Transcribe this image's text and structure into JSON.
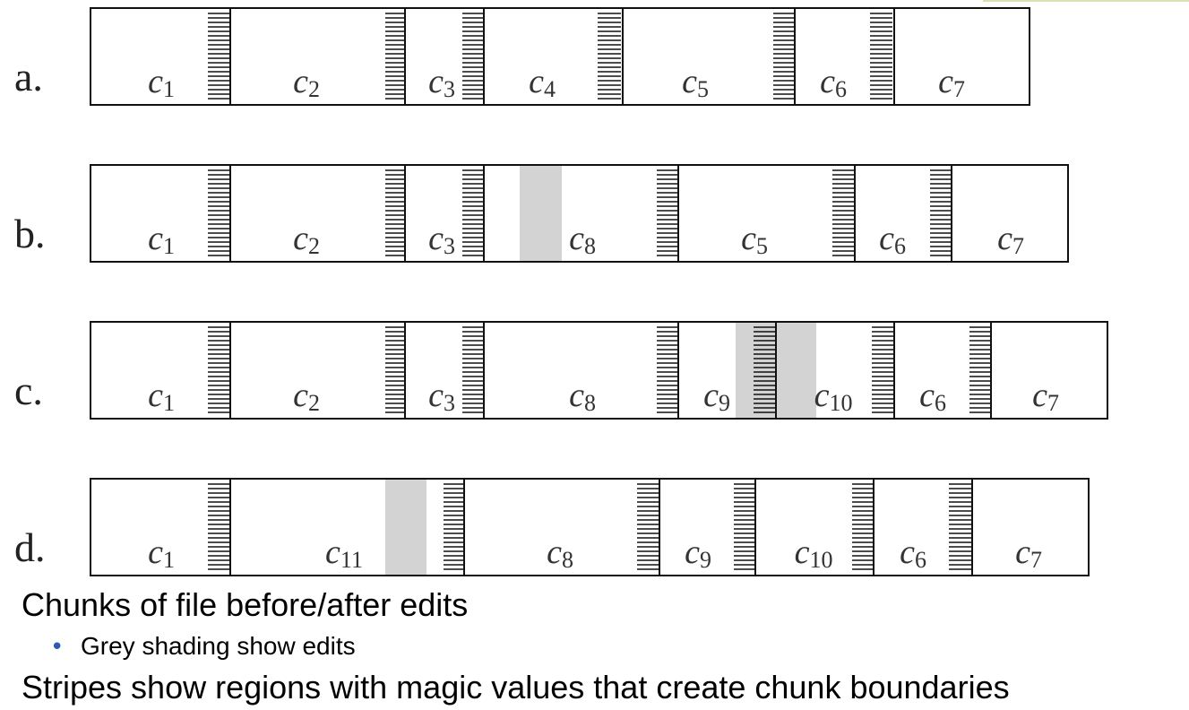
{
  "rows": [
    {
      "label": "a.",
      "chunks": [
        {
          "name": "c",
          "sub": "1"
        },
        {
          "name": "c",
          "sub": "2"
        },
        {
          "name": "c",
          "sub": "3"
        },
        {
          "name": "c",
          "sub": "4"
        },
        {
          "name": "c",
          "sub": "5"
        },
        {
          "name": "c",
          "sub": "6"
        },
        {
          "name": "c",
          "sub": "7"
        }
      ]
    },
    {
      "label": "b.",
      "chunks": [
        {
          "name": "c",
          "sub": "1"
        },
        {
          "name": "c",
          "sub": "2"
        },
        {
          "name": "c",
          "sub": "3"
        },
        {
          "name": "c",
          "sub": "8"
        },
        {
          "name": "c",
          "sub": "5"
        },
        {
          "name": "c",
          "sub": "6"
        },
        {
          "name": "c",
          "sub": "7"
        }
      ]
    },
    {
      "label": "c.",
      "chunks": [
        {
          "name": "c",
          "sub": "1"
        },
        {
          "name": "c",
          "sub": "2"
        },
        {
          "name": "c",
          "sub": "3"
        },
        {
          "name": "c",
          "sub": "8"
        },
        {
          "name": "c",
          "sub": "9"
        },
        {
          "name": "c",
          "sub": "10"
        },
        {
          "name": "c",
          "sub": "6"
        },
        {
          "name": "c",
          "sub": "7"
        }
      ]
    },
    {
      "label": "d.",
      "chunks": [
        {
          "name": "c",
          "sub": "1"
        },
        {
          "name": "c",
          "sub": "11"
        },
        {
          "name": "c",
          "sub": "8"
        },
        {
          "name": "c",
          "sub": "9"
        },
        {
          "name": "c",
          "sub": "10"
        },
        {
          "name": "c",
          "sub": "6"
        },
        {
          "name": "c",
          "sub": "7"
        }
      ]
    }
  ],
  "captions": {
    "main": "Chunks of file before/after edits",
    "bullet": "Grey shading show edits",
    "stripes": "Stripes show regions with magic values that create chunk boundaries"
  },
  "colors": {
    "edit_shading": "#d3d3d3",
    "stripe": "#111111",
    "outline": "#111111",
    "bullet": "#2a5db0"
  }
}
